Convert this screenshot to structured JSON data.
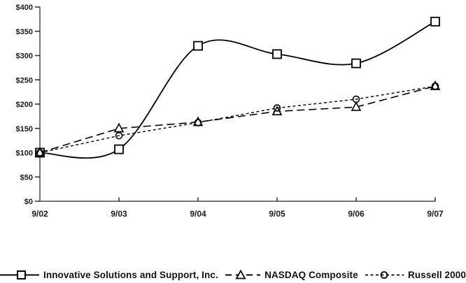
{
  "chart_data": {
    "type": "line",
    "title": "",
    "categories": [
      "9/02",
      "9/03",
      "9/04",
      "9/05",
      "9/06",
      "9/07"
    ],
    "series": [
      {
        "name": "Innovative Solutions and Support, Inc.",
        "values": [
          100,
          107,
          320,
          303,
          284,
          370
        ],
        "line": "solid",
        "marker": "square",
        "smooth": true
      },
      {
        "name": "NASDAQ Composite",
        "values": [
          100,
          150,
          163,
          185,
          194,
          237
        ],
        "line": "long-dash",
        "marker": "triangle",
        "smooth": false
      },
      {
        "name": "Russell 2000",
        "values": [
          100,
          135,
          162,
          192,
          210,
          237
        ],
        "line": "short-dash",
        "marker": "circle",
        "smooth": false
      }
    ],
    "xlabel": "",
    "ylabel": "",
    "ylim": [
      0,
      400
    ],
    "y_tick_step": 50,
    "y_tick_labels": [
      "$0",
      "$50",
      "$100",
      "$150",
      "$200",
      "$250",
      "$300",
      "$350",
      "$400"
    ],
    "x_tick_labels": [
      "9/02",
      "9/03",
      "9/04",
      "9/05",
      "9/06",
      "9/07"
    ],
    "grid": false,
    "legend_position": "bottom",
    "line_color": "#000000",
    "y_axis_color": "#7a7a7a",
    "x_axis_color": "#4a4a4a",
    "label_color": "#1a1a1a"
  }
}
